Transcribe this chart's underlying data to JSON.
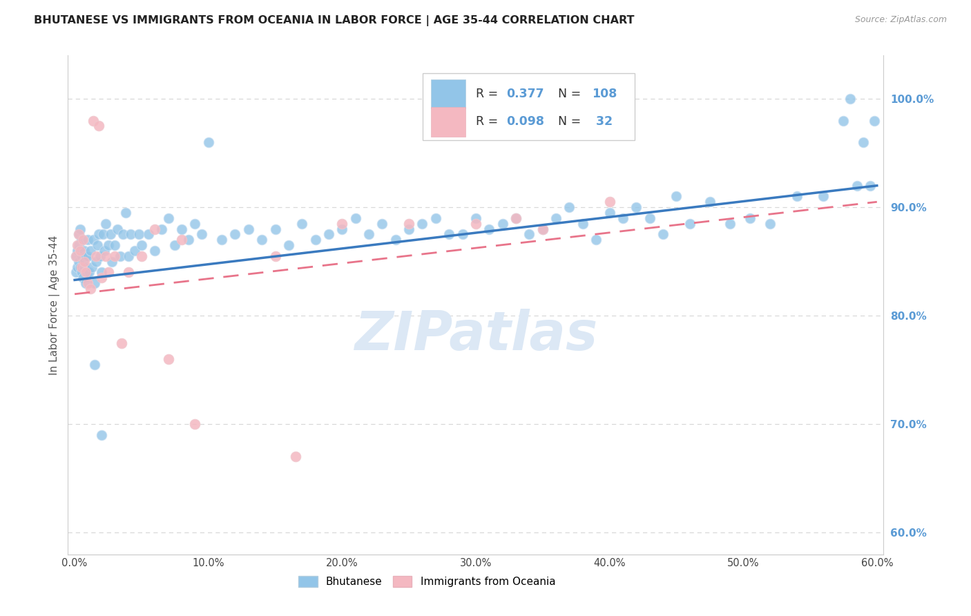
{
  "title": "BHUTANESE VS IMMIGRANTS FROM OCEANIA IN LABOR FORCE | AGE 35-44 CORRELATION CHART",
  "source": "Source: ZipAtlas.com",
  "ylabel": "In Labor Force | Age 35-44",
  "right_yticks": [
    0.6,
    0.7,
    0.8,
    0.9,
    1.0
  ],
  "right_ytick_labels": [
    "60.0%",
    "70.0%",
    "80.0%",
    "90.0%",
    "100.0%"
  ],
  "xlim": [
    -0.005,
    0.605
  ],
  "ylim": [
    0.58,
    1.04
  ],
  "xtick_vals": [
    0.0,
    0.1,
    0.2,
    0.3,
    0.4,
    0.5,
    0.6
  ],
  "xtick_labels": [
    "0.0%",
    "10.0%",
    "20.0%",
    "30.0%",
    "40.0%",
    "50.0%",
    "60.0%"
  ],
  "blue_color": "#92c5e8",
  "pink_color": "#f4b8c1",
  "blue_line_color": "#3a7abf",
  "pink_line_color": "#e8748a",
  "watermark": "ZIPatlas",
  "blue_x": [
    0.001,
    0.001,
    0.002,
    0.002,
    0.003,
    0.003,
    0.003,
    0.004,
    0.004,
    0.004,
    0.005,
    0.005,
    0.005,
    0.006,
    0.006,
    0.007,
    0.007,
    0.008,
    0.008,
    0.009,
    0.01,
    0.01,
    0.011,
    0.012,
    0.013,
    0.014,
    0.015,
    0.016,
    0.017,
    0.018,
    0.019,
    0.02,
    0.021,
    0.022,
    0.023,
    0.025,
    0.027,
    0.028,
    0.03,
    0.032,
    0.034,
    0.036,
    0.038,
    0.04,
    0.042,
    0.045,
    0.048,
    0.05,
    0.055,
    0.06,
    0.065,
    0.07,
    0.075,
    0.08,
    0.085,
    0.09,
    0.095,
    0.1,
    0.11,
    0.12,
    0.13,
    0.14,
    0.15,
    0.16,
    0.17,
    0.18,
    0.19,
    0.2,
    0.21,
    0.22,
    0.23,
    0.24,
    0.25,
    0.26,
    0.27,
    0.28,
    0.29,
    0.3,
    0.31,
    0.32,
    0.33,
    0.34,
    0.35,
    0.36,
    0.37,
    0.38,
    0.39,
    0.4,
    0.41,
    0.42,
    0.43,
    0.44,
    0.45,
    0.46,
    0.475,
    0.49,
    0.505,
    0.52,
    0.54,
    0.56,
    0.575,
    0.58,
    0.585,
    0.59,
    0.595,
    0.598,
    0.015,
    0.02
  ],
  "blue_y": [
    0.855,
    0.84,
    0.86,
    0.845,
    0.865,
    0.85,
    0.875,
    0.845,
    0.86,
    0.88,
    0.84,
    0.855,
    0.87,
    0.835,
    0.85,
    0.845,
    0.86,
    0.83,
    0.855,
    0.84,
    0.855,
    0.87,
    0.84,
    0.86,
    0.845,
    0.87,
    0.83,
    0.85,
    0.865,
    0.875,
    0.855,
    0.84,
    0.875,
    0.86,
    0.885,
    0.865,
    0.875,
    0.85,
    0.865,
    0.88,
    0.855,
    0.875,
    0.895,
    0.855,
    0.875,
    0.86,
    0.875,
    0.865,
    0.875,
    0.86,
    0.88,
    0.89,
    0.865,
    0.88,
    0.87,
    0.885,
    0.875,
    0.96,
    0.87,
    0.875,
    0.88,
    0.87,
    0.88,
    0.865,
    0.885,
    0.87,
    0.875,
    0.88,
    0.89,
    0.875,
    0.885,
    0.87,
    0.88,
    0.885,
    0.89,
    0.875,
    0.875,
    0.89,
    0.88,
    0.885,
    0.89,
    0.875,
    0.88,
    0.89,
    0.9,
    0.885,
    0.87,
    0.895,
    0.89,
    0.9,
    0.89,
    0.875,
    0.91,
    0.885,
    0.905,
    0.885,
    0.89,
    0.885,
    0.91,
    0.91,
    0.98,
    1.0,
    0.92,
    0.96,
    0.92,
    0.98,
    0.755,
    0.69
  ],
  "pink_x": [
    0.001,
    0.002,
    0.003,
    0.004,
    0.005,
    0.006,
    0.007,
    0.008,
    0.01,
    0.012,
    0.014,
    0.016,
    0.018,
    0.02,
    0.023,
    0.025,
    0.03,
    0.035,
    0.04,
    0.05,
    0.06,
    0.07,
    0.08,
    0.09,
    0.15,
    0.165,
    0.2,
    0.25,
    0.3,
    0.33,
    0.35,
    0.4
  ],
  "pink_y": [
    0.855,
    0.865,
    0.875,
    0.86,
    0.845,
    0.87,
    0.85,
    0.84,
    0.83,
    0.825,
    0.98,
    0.855,
    0.975,
    0.835,
    0.855,
    0.84,
    0.855,
    0.775,
    0.84,
    0.855,
    0.88,
    0.76,
    0.87,
    0.7,
    0.855,
    0.67,
    0.885,
    0.885,
    0.885,
    0.89,
    0.88,
    0.905
  ],
  "grid_color": "#d8d8d8",
  "axis_color": "#cccccc",
  "right_axis_color": "#5b9bd5",
  "watermark_color": "#dce8f5",
  "background_color": "#ffffff",
  "legend_r1_val": "0.377",
  "legend_n1_val": "108",
  "legend_r2_val": "0.098",
  "legend_n2_val": " 32"
}
